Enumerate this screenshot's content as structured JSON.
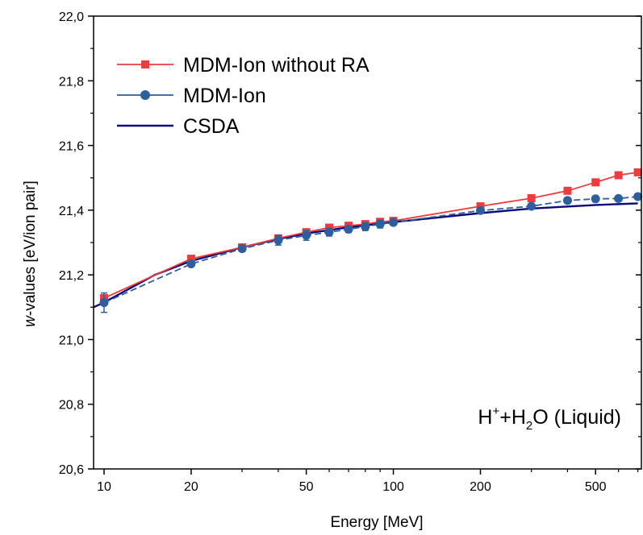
{
  "chart_data": {
    "type": "line",
    "xlabel": "Energy [MeV]",
    "ylabel_italic": "w",
    "ylabel_rest": "-values [eV/ion pair]",
    "x_scale": "log",
    "xlim": [
      9.2,
      720
    ],
    "ylim": [
      20.6,
      22.0
    ],
    "x_ticks": [
      10,
      20,
      50,
      100,
      200,
      500
    ],
    "x_tick_labels": [
      "10",
      "20",
      "50",
      "100",
      "200",
      "500"
    ],
    "y_ticks": [
      20.6,
      20.8,
      21.0,
      21.2,
      21.4,
      21.6,
      21.8,
      22.0
    ],
    "y_tick_labels": [
      "20,6",
      "20,8",
      "21,0",
      "21,2",
      "21,4",
      "21,6",
      "21,8",
      "22,0"
    ],
    "legend_position": "top-left",
    "annotation": {
      "prefix": "H",
      "sup": "+",
      "mid": "+H",
      "sub": "2",
      "suffix": "O (Liquid)"
    },
    "series": [
      {
        "name": "MDM-Ion without RA",
        "color": "#ee3b3b",
        "marker": "square",
        "dashed": false,
        "x": [
          10,
          20,
          30,
          40,
          50,
          60,
          70,
          80,
          90,
          100,
          200,
          300,
          400,
          500,
          600,
          700
        ],
        "y": [
          21.128,
          21.25,
          21.285,
          21.313,
          21.332,
          21.346,
          21.352,
          21.357,
          21.364,
          21.367,
          21.412,
          21.437,
          21.46,
          21.486,
          21.508,
          21.517
        ]
      },
      {
        "name": "MDM-Ion",
        "color": "#2d5fa0",
        "marker": "circle",
        "dashed": true,
        "x": [
          10,
          20,
          30,
          40,
          50,
          60,
          70,
          80,
          90,
          100,
          200,
          300,
          400,
          500,
          600,
          700
        ],
        "y": [
          21.114,
          21.234,
          21.281,
          21.307,
          21.322,
          21.332,
          21.341,
          21.349,
          21.357,
          21.362,
          21.399,
          21.412,
          21.43,
          21.435,
          21.436,
          21.442
        ],
        "err": [
          0.03,
          0.008,
          0.008,
          0.015,
          0.015,
          0.012,
          0.01,
          0.012,
          0.012,
          0.008,
          0.006,
          0.006,
          0.006,
          0.005,
          0.005,
          0.005
        ]
      },
      {
        "name": "CSDA",
        "color": "#0a0a7a",
        "marker": "none",
        "dashed": false,
        "x": [
          9.2,
          10,
          15,
          20,
          30,
          40,
          50,
          70,
          100,
          200,
          300,
          500,
          700
        ],
        "y": [
          21.1,
          21.115,
          21.2,
          21.243,
          21.285,
          21.311,
          21.328,
          21.347,
          21.363,
          21.391,
          21.405,
          21.416,
          21.421
        ]
      }
    ]
  }
}
